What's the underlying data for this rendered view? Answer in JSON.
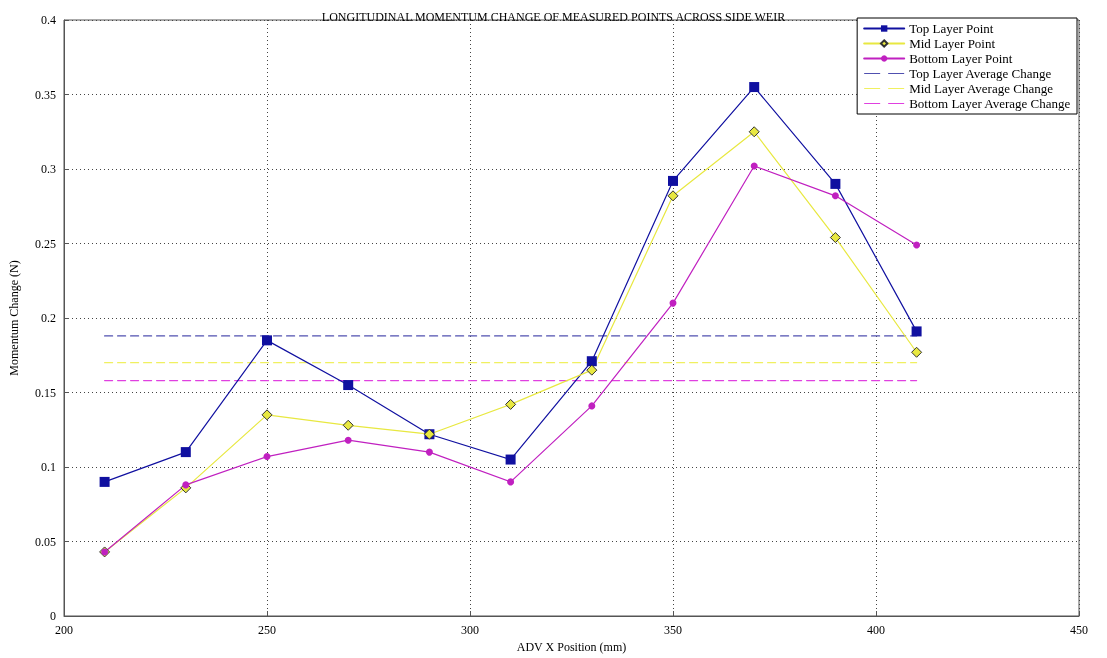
{
  "chart_data": {
    "type": "line",
    "title": "LONGITUDINAL MOMENTUM CHANGE OF MEASURED POINTS ACROSS SIDE WEIR",
    "xlabel": "ADV X Position (mm)",
    "ylabel": "Momentum Change (N)",
    "x": [
      210,
      230,
      250,
      270,
      290,
      310,
      330,
      350,
      370,
      390,
      410
    ],
    "xlim": [
      200,
      450
    ],
    "xticks": [
      200,
      250,
      300,
      350,
      400,
      450
    ],
    "ylim": [
      0,
      0.4
    ],
    "yticks": [
      0,
      0.05,
      0.1,
      0.15,
      0.2,
      0.25,
      0.3,
      0.35,
      0.4
    ],
    "grid": true,
    "legend": "top right",
    "series": [
      {
        "name": "Top Layer Point",
        "color": "#1010a0",
        "marker": "square",
        "line_style": "solid",
        "values": [
          0.09,
          0.11,
          0.185,
          0.155,
          0.122,
          0.105,
          0.171,
          0.292,
          0.355,
          0.29,
          0.191
        ]
      },
      {
        "name": "Mid Layer Point",
        "color": "#e8e840",
        "marker": "diamond",
        "line_style": "solid",
        "values": [
          0.043,
          0.086,
          0.135,
          0.128,
          0.122,
          0.142,
          0.165,
          0.282,
          0.325,
          0.254,
          0.177
        ]
      },
      {
        "name": "Bottom Layer Point",
        "color": "#c020c0",
        "marker": "circle",
        "line_style": "solid",
        "values": [
          0.043,
          0.088,
          0.107,
          0.118,
          0.11,
          0.09,
          0.141,
          0.21,
          0.302,
          0.282,
          0.249
        ]
      },
      {
        "name": "Top Layer Average Change",
        "color": "#5050b0",
        "marker": "none",
        "line_style": "dashed",
        "values": [
          0.188,
          0.188,
          0.188,
          0.188,
          0.188,
          0.188,
          0.188,
          0.188,
          0.188,
          0.188,
          0.188
        ]
      },
      {
        "name": "Mid Layer Average Change",
        "color": "#f0f060",
        "marker": "none",
        "line_style": "dashed",
        "values": [
          0.17,
          0.17,
          0.17,
          0.17,
          0.17,
          0.17,
          0.17,
          0.17,
          0.17,
          0.17,
          0.17
        ]
      },
      {
        "name": "Bottom Layer Average Change",
        "color": "#e040e0",
        "marker": "none",
        "line_style": "dashed",
        "values": [
          0.158,
          0.158,
          0.158,
          0.158,
          0.158,
          0.158,
          0.158,
          0.158,
          0.158,
          0.158,
          0.158
        ]
      }
    ]
  }
}
